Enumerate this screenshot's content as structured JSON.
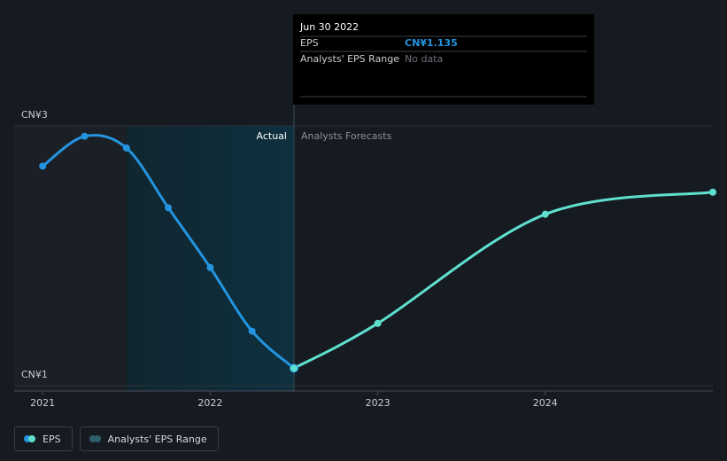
{
  "chart_data": {
    "type": "line",
    "series": [
      {
        "name": "EPS",
        "color": "#2394df",
        "x": [
          2021.0,
          2021.25,
          2021.5,
          2021.75,
          2022.0,
          2022.25,
          2022.5
        ],
        "values": [
          2.69,
          2.92,
          2.83,
          2.37,
          1.91,
          1.42,
          1.135
        ]
      },
      {
        "color": "#5fe0cf",
        "x": [
          2022.5,
          2023.0,
          2024.0,
          2025.0
        ],
        "values": [
          1.135,
          1.48,
          2.32,
          2.49
        ]
      }
    ],
    "range_legend": {
      "name": "Analysts' EPS Range",
      "color": "#2e5f6b"
    },
    "annotations": {
      "actual": "Actual",
      "forecast": "Analysts Forecasts"
    },
    "tooltip": {
      "title": "Jun 30 2022",
      "rows": [
        {
          "label": "EPS",
          "value": "CN¥1.135"
        },
        {
          "label": "Analysts' EPS Range",
          "value": "No data"
        }
      ]
    },
    "xlim": [
      2020.83,
      2025.0
    ],
    "xticks": [
      2021,
      2022,
      2023,
      2024
    ],
    "ylim": [
      0.96,
      3
    ],
    "yticks": [
      {
        "value": 1,
        "label": "CN¥1"
      },
      {
        "value": 3,
        "label": "CN¥3"
      }
    ]
  }
}
